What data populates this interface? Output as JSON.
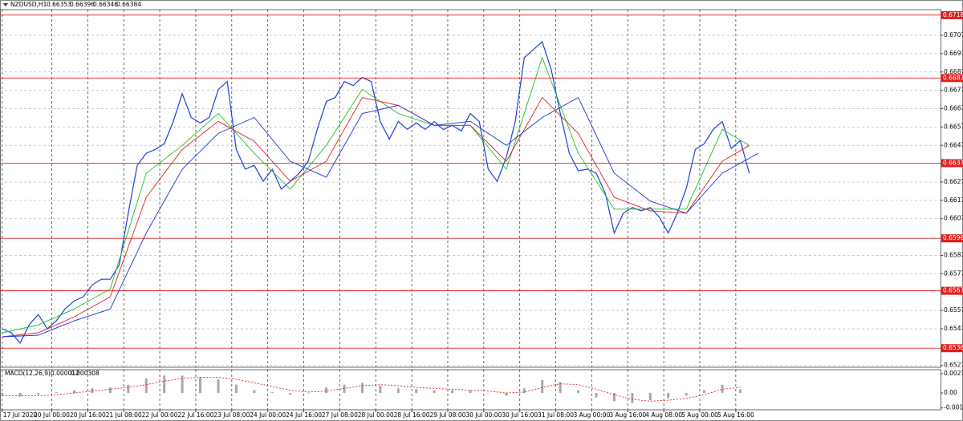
{
  "chart_data": [
    {
      "type": "price",
      "symbol": "NZDUSD,H1",
      "ohlc": [
        0.66353,
        0.66396,
        0.66346,
        0.66384
      ],
      "xlim": [
        -1,
        417
      ],
      "ylim": [
        0.6526,
        0.6721
      ],
      "grid": true,
      "xticks": [
        {
          "value": 0,
          "label": "17 Jul 2020"
        },
        {
          "value": 22,
          "label": "20 Jul 00:00"
        },
        {
          "value": 38,
          "label": "20 Jul 16:00"
        },
        {
          "value": 54,
          "label": "21 Jul 08:00"
        },
        {
          "value": 70,
          "label": "22 Jul 00:00"
        },
        {
          "value": 86,
          "label": "22 Jul 16:00"
        },
        {
          "value": 102,
          "label": "23 Jul 08:00"
        },
        {
          "value": 118,
          "label": "24 Jul 00:00"
        },
        {
          "value": 134,
          "label": "24 Jul 16:00"
        },
        {
          "value": 150,
          "label": "27 Jul 08:00"
        },
        {
          "value": 166,
          "label": "28 Jul 00:00"
        },
        {
          "value": 182,
          "label": "28 Jul 16:00"
        },
        {
          "value": 198,
          "label": "29 Jul 08:00"
        },
        {
          "value": 214,
          "label": "30 Jul 00:00"
        },
        {
          "value": 230,
          "label": "30 Jul 16:00"
        },
        {
          "value": 246,
          "label": "31 Jul 08:00"
        },
        {
          "value": 262,
          "label": "3 Aug 00:00"
        },
        {
          "value": 278,
          "label": "3 Aug 16:00"
        },
        {
          "value": 294,
          "label": "4 Aug 08:00"
        },
        {
          "value": 310,
          "label": "5 Aug 00:00"
        },
        {
          "value": 326,
          "label": "5 Aug 16:00"
        }
      ],
      "yticks": [
        {
          "value": 0.6707,
          "label": "0.67070"
        },
        {
          "value": 0.6697,
          "label": "0.66970"
        },
        {
          "value": 0.6687,
          "label": "0.66870"
        },
        {
          "value": 0.6677,
          "label": "0.66770"
        },
        {
          "value": 0.6667,
          "label": "0.66670"
        },
        {
          "value": 0.6657,
          "label": "0.66570"
        },
        {
          "value": 0.6647,
          "label": "0.66470"
        },
        {
          "value": 0.6627,
          "label": "0.66270"
        },
        {
          "value": 0.6617,
          "label": "0.66170"
        },
        {
          "value": 0.6607,
          "label": "0.66070"
        },
        {
          "value": 0.6587,
          "label": "0.65870"
        },
        {
          "value": 0.6577,
          "label": "0.65770"
        },
        {
          "value": 0.6557,
          "label": "0.65570"
        },
        {
          "value": 0.6547,
          "label": "0.65470"
        },
        {
          "value": 0.6527,
          "label": "0.65270"
        }
      ],
      "levels": [
        {
          "value": 0.6718,
          "label": "0.67180"
        },
        {
          "value": 0.66837,
          "label": "0.66837"
        },
        {
          "value": 0.66373,
          "label": "0.66373"
        },
        {
          "value": 0.65963,
          "label": "0.65963"
        },
        {
          "value": 0.65677,
          "label": "0.65677"
        },
        {
          "value": 0.65364,
          "label": "0.65364"
        }
      ],
      "level_color": "#e02020",
      "series": [
        {
          "color": "#1f3fe0",
          "style": "line",
          "x": [
            0,
            4,
            8,
            12,
            16,
            20,
            24,
            28,
            32,
            36,
            40,
            44,
            48,
            52,
            56,
            60,
            64,
            68,
            72,
            76,
            80,
            84,
            88,
            92,
            96,
            100,
            104,
            108,
            112,
            116,
            120,
            124,
            128,
            132,
            136,
            140,
            144,
            148,
            152,
            156,
            160,
            164,
            168,
            172,
            176,
            180,
            184,
            188,
            192,
            196,
            200,
            204,
            208,
            212,
            216,
            220,
            224,
            228,
            232,
            236,
            240,
            244,
            248,
            252,
            256,
            260,
            264,
            268,
            272,
            276,
            280,
            284,
            288,
            292,
            296,
            300,
            304,
            308,
            312,
            316,
            320,
            324,
            328,
            332
          ],
          "values": [
            0.6547,
            0.65448,
            0.65392,
            0.65492,
            0.65548,
            0.6547,
            0.65513,
            0.65579,
            0.65622,
            0.65644,
            0.65709,
            0.6574,
            0.6574,
            0.65818,
            0.661,
            0.66361,
            0.66427,
            0.66448,
            0.66479,
            0.666,
            0.66752,
            0.66622,
            0.66592,
            0.66622,
            0.66774,
            0.66818,
            0.66448,
            0.6634,
            0.66361,
            0.66274,
            0.6634,
            0.66231,
            0.66274,
            0.66318,
            0.66383,
            0.66557,
            0.66709,
            0.66731,
            0.66818,
            0.66796,
            0.6684,
            0.66818,
            0.666,
            0.66504,
            0.666,
            0.66557,
            0.66592,
            0.66557,
            0.666,
            0.66557,
            0.66579,
            0.66548,
            0.66644,
            0.666,
            0.6634,
            0.66274,
            0.66405,
            0.666,
            0.66948,
            0.66992,
            0.67035,
            0.66883,
            0.66644,
            0.66427,
            0.66331,
            0.6634,
            0.66318,
            0.66209,
            0.65992,
            0.661,
            0.66131,
            0.66113,
            0.66131,
            0.66079,
            0.65992,
            0.661,
            0.66235,
            0.66448,
            0.66479,
            0.66557,
            0.666,
            0.66453,
            0.66496,
            0.66318
          ]
        },
        {
          "color": "#20c020",
          "style": "thin",
          "x": [
            0,
            16,
            32,
            48,
            64,
            80,
            96,
            112,
            128,
            144,
            160,
            176,
            192,
            208,
            224,
            240,
            256,
            272,
            288,
            304,
            320,
            332
          ],
          "values": [
            0.65448,
            0.65491,
            0.65578,
            0.65687,
            0.66318,
            0.6647,
            0.66644,
            0.66427,
            0.66231,
            0.6647,
            0.66775,
            0.66644,
            0.66579,
            0.66579,
            0.6634,
            0.66949,
            0.66427,
            0.66122,
            0.66122,
            0.66122,
            0.66557,
            0.6647
          ]
        },
        {
          "color": "#e02020",
          "style": "thin",
          "x": [
            0,
            16,
            32,
            48,
            64,
            80,
            96,
            112,
            128,
            144,
            160,
            176,
            192,
            208,
            224,
            240,
            256,
            272,
            288,
            304,
            320,
            332
          ],
          "values": [
            0.65426,
            0.65448,
            0.65535,
            0.65644,
            0.66187,
            0.66448,
            0.66601,
            0.66492,
            0.66274,
            0.66383,
            0.66731,
            0.66688,
            0.66579,
            0.66579,
            0.66383,
            0.66731,
            0.66535,
            0.66187,
            0.66113,
            0.661,
            0.66383,
            0.6647
          ]
        },
        {
          "color": "#2030e0",
          "style": "thin",
          "x": [
            0,
            16,
            32,
            48,
            64,
            80,
            96,
            112,
            128,
            144,
            160,
            176,
            192,
            208,
            224,
            240,
            256,
            272,
            288,
            304,
            320,
            336
          ],
          "values": [
            0.65426,
            0.65435,
            0.65513,
            0.65578,
            0.65992,
            0.6634,
            0.66535,
            0.66622,
            0.66383,
            0.66296,
            0.66644,
            0.66688,
            0.66579,
            0.66601,
            0.6647,
            0.66622,
            0.66731,
            0.66318,
            0.66166,
            0.661,
            0.66318,
            0.66427
          ]
        }
      ]
    },
    {
      "type": "macd",
      "label": "MACD(12,26,9)",
      "readings": [
        1.2e-05,
        0.000308
      ],
      "ylim": [
        -0.00184,
        0.00254
      ],
      "yticks": [
        0.002103,
        {
          "value": 0,
          "label": "0.00"
        },
        -0.00164
      ],
      "series": [
        {
          "color": "#a8a8a8",
          "style": "bars",
          "x": [
            0,
            8,
            16,
            24,
            32,
            40,
            48,
            56,
            64,
            72,
            80,
            88,
            96,
            104,
            112,
            120,
            128,
            136,
            144,
            152,
            160,
            168,
            176,
            184,
            192,
            200,
            208,
            216,
            224,
            232,
            240,
            248,
            256,
            264,
            272,
            280,
            288,
            296,
            304,
            312,
            320,
            328
          ],
          "values": [
            -0.0003,
            -0.0004,
            -0.0002,
            0.0001,
            0.0003,
            0.0005,
            0.0006,
            0.0009,
            0.0016,
            0.0019,
            0.0019,
            0.0017,
            0.0015,
            0.0009,
            0.0003,
            0.0001,
            -0.0002,
            0,
            0.0006,
            0.0009,
            0.0011,
            0.0008,
            0.0005,
            0.0004,
            0.0003,
            0.0003,
            0.0003,
            0,
            -0.0003,
            0.0005,
            0.0014,
            0.0012,
            0.0003,
            -0.0005,
            -0.0009,
            -0.0011,
            -0.0008,
            -0.0006,
            -0.0003,
            0.0003,
            0.0009,
            0.0004
          ]
        },
        {
          "color": "#e02020",
          "style": "dotted",
          "x": [
            0,
            8,
            16,
            24,
            32,
            40,
            48,
            56,
            64,
            72,
            80,
            88,
            96,
            104,
            112,
            120,
            128,
            136,
            144,
            152,
            160,
            168,
            176,
            184,
            192,
            200,
            208,
            216,
            224,
            232,
            240,
            248,
            256,
            264,
            272,
            280,
            288,
            296,
            304,
            312,
            320,
            328
          ],
          "values": [
            -0.0003,
            -0.0003,
            -0.0003,
            -0.0002,
            0,
            0.0002,
            0.0004,
            0.0006,
            0.0009,
            0.0013,
            0.0016,
            0.0017,
            0.0017,
            0.0015,
            0.0011,
            0.0007,
            0.0003,
            0.0001,
            0.0002,
            0.0005,
            0.0008,
            0.0009,
            0.0008,
            0.0006,
            0.0005,
            0.0004,
            0.0003,
            0.0002,
            0,
            0.0001,
            0.0006,
            0.001,
            0.0009,
            0.0004,
            -0.0002,
            -0.0007,
            -0.0009,
            -0.0008,
            -0.0006,
            -0.0002,
            0.0004,
            0.0006
          ]
        }
      ]
    }
  ]
}
